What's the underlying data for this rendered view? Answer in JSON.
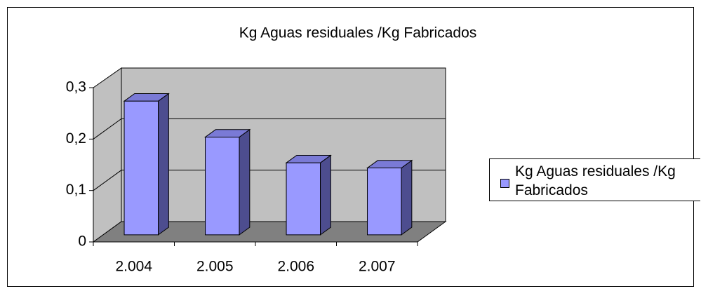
{
  "chart_data": {
    "type": "bar3d",
    "title": "Kg Aguas residuales /Kg Fabricados",
    "categories": [
      "2.004",
      "2.005",
      "2.006",
      "2.007"
    ],
    "series": [
      {
        "name": "Kg Aguas residuales /Kg Fabricados",
        "color": "#9999ff",
        "values": [
          0.26,
          0.19,
          0.14,
          0.13
        ]
      }
    ],
    "ylim": [
      0,
      0.3
    ],
    "yticks": [
      0,
      {
        "value": 0.1,
        "label": "0,1"
      },
      {
        "value": 0.2,
        "label": "0,2"
      },
      {
        "value": 0.3,
        "label": "0,3"
      }
    ],
    "grid": true,
    "legend": "right"
  }
}
